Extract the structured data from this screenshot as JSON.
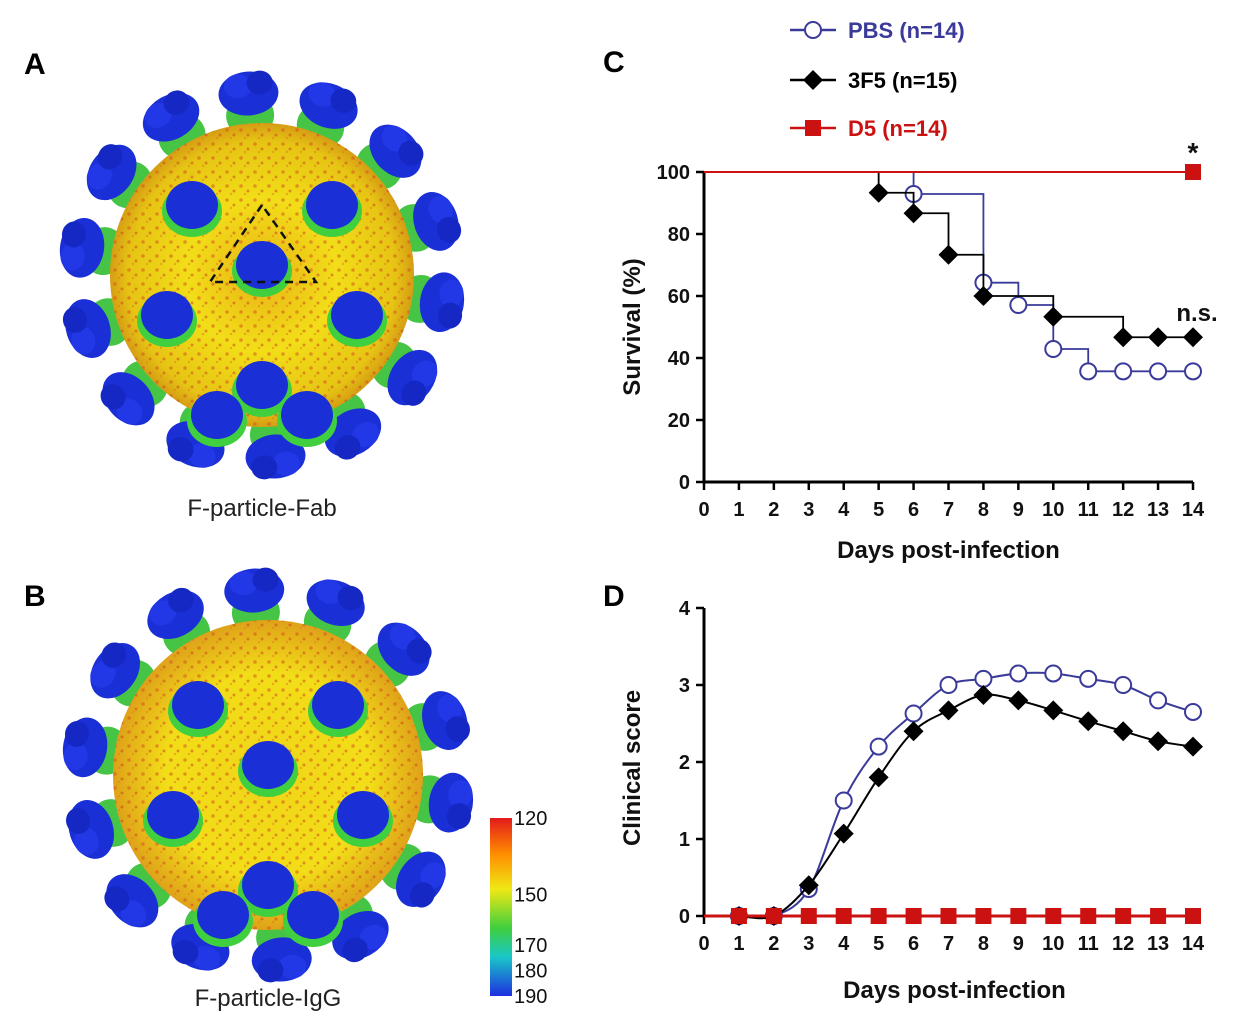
{
  "panels": {
    "a": {
      "letter": "A",
      "caption": "F-particle-Fab"
    },
    "b": {
      "letter": "B",
      "caption": "F-particle-IgG"
    },
    "c": {
      "letter": "C"
    },
    "d": {
      "letter": "D"
    }
  },
  "colors": {
    "pbs": "#3a3a9a",
    "f35": "#000000",
    "d5": "#cc1111",
    "particle_core": "#f2de18",
    "particle_orange": "#e78a1f",
    "particle_green": "#46c446",
    "particle_blue": "#1a2fd6"
  },
  "colorbar": {
    "labels": [
      "120",
      "150",
      "170",
      "180",
      "190"
    ],
    "values": [
      120,
      150,
      170,
      180,
      190
    ],
    "colors": [
      "#e31a1c",
      "#ff8c00",
      "#f0e814",
      "#3fcf3f",
      "#19c7c7",
      "#1e2fe0"
    ]
  },
  "legend": {
    "entries": [
      {
        "label": "PBS (n=14)",
        "series": "PBS",
        "marker": "open-circle",
        "color": "#3a3a9a"
      },
      {
        "label": "3F5 (n=15)",
        "series": "3F5",
        "marker": "diamond",
        "color": "#000000"
      },
      {
        "label": "D5 (n=14)",
        "series": "D5",
        "marker": "square",
        "color": "#cc1111"
      }
    ]
  },
  "chart_data": [
    {
      "panel": "C",
      "type": "line",
      "step": true,
      "xlabel": "Days post-infection",
      "ylabel": "Survival (%)",
      "xlim": [
        0,
        14
      ],
      "ylim": [
        0,
        100
      ],
      "xticks": [
        "0",
        "1",
        "2",
        "3",
        "4",
        "5",
        "6",
        "7",
        "8",
        "9",
        "10",
        "11",
        "12",
        "13",
        "14"
      ],
      "yticks": [
        "0",
        "20",
        "40",
        "60",
        "80",
        "100"
      ],
      "annotations": [
        {
          "text": "*",
          "series": "D5",
          "x": 14,
          "y": 100
        },
        {
          "text": "n.s.",
          "series": "3F5",
          "x": 14,
          "y": 46.7
        }
      ],
      "series": [
        {
          "name": "PBS",
          "color": "#3a3a9a",
          "marker": "open-circle",
          "steps": [
            [
              0,
              100
            ],
            [
              6,
              92.9
            ],
            [
              8,
              64.3
            ],
            [
              9,
              57.1
            ],
            [
              10,
              42.9
            ],
            [
              11,
              35.7
            ],
            [
              14,
              35.7
            ]
          ],
          "markers": [
            [
              6,
              92.9
            ],
            [
              8,
              64.3
            ],
            [
              9,
              57.1
            ],
            [
              10,
              42.9
            ],
            [
              11,
              35.7
            ],
            [
              12,
              35.7
            ],
            [
              13,
              35.7
            ],
            [
              14,
              35.7
            ]
          ]
        },
        {
          "name": "3F5",
          "color": "#000000",
          "marker": "diamond",
          "steps": [
            [
              0,
              100
            ],
            [
              5,
              93.3
            ],
            [
              6,
              86.7
            ],
            [
              7,
              73.3
            ],
            [
              8,
              60
            ],
            [
              10,
              53.3
            ],
            [
              12,
              46.7
            ],
            [
              14,
              46.7
            ]
          ],
          "markers": [
            [
              5,
              93.3
            ],
            [
              6,
              86.7
            ],
            [
              7,
              73.3
            ],
            [
              8,
              60
            ],
            [
              10,
              53.3
            ],
            [
              12,
              46.7
            ],
            [
              13,
              46.7
            ],
            [
              14,
              46.7
            ]
          ]
        },
        {
          "name": "D5",
          "color": "#cc1111",
          "marker": "square",
          "steps": [
            [
              0,
              100
            ],
            [
              14,
              100
            ]
          ],
          "markers": [
            [
              14,
              100
            ]
          ]
        }
      ]
    },
    {
      "panel": "D",
      "type": "line",
      "xlabel": "Days post-infection",
      "ylabel": "Clinical score",
      "xlim": [
        0,
        14
      ],
      "ylim": [
        0,
        4
      ],
      "xticks": [
        "0",
        "1",
        "2",
        "3",
        "4",
        "5",
        "6",
        "7",
        "8",
        "9",
        "10",
        "11",
        "12",
        "13",
        "14"
      ],
      "yticks": [
        "0",
        "1",
        "2",
        "3",
        "4"
      ],
      "x": [
        1,
        2,
        3,
        4,
        5,
        6,
        7,
        8,
        9,
        10,
        11,
        12,
        13,
        14
      ],
      "series": [
        {
          "name": "PBS",
          "color": "#3a3a9a",
          "marker": "open-circle",
          "values": [
            0,
            0,
            0.35,
            1.5,
            2.2,
            2.63,
            3.0,
            3.08,
            3.15,
            3.15,
            3.08,
            3.0,
            2.8,
            2.65
          ]
        },
        {
          "name": "3F5",
          "color": "#000000",
          "marker": "diamond",
          "values": [
            0,
            0,
            0.4,
            1.07,
            1.8,
            2.4,
            2.67,
            2.87,
            2.8,
            2.67,
            2.53,
            2.4,
            2.27,
            2.2
          ]
        },
        {
          "name": "D5",
          "color": "#cc1111",
          "marker": "square",
          "values": [
            0,
            0,
            0,
            0,
            0,
            0,
            0,
            0,
            0,
            0,
            0,
            0,
            0,
            0
          ]
        }
      ]
    }
  ]
}
